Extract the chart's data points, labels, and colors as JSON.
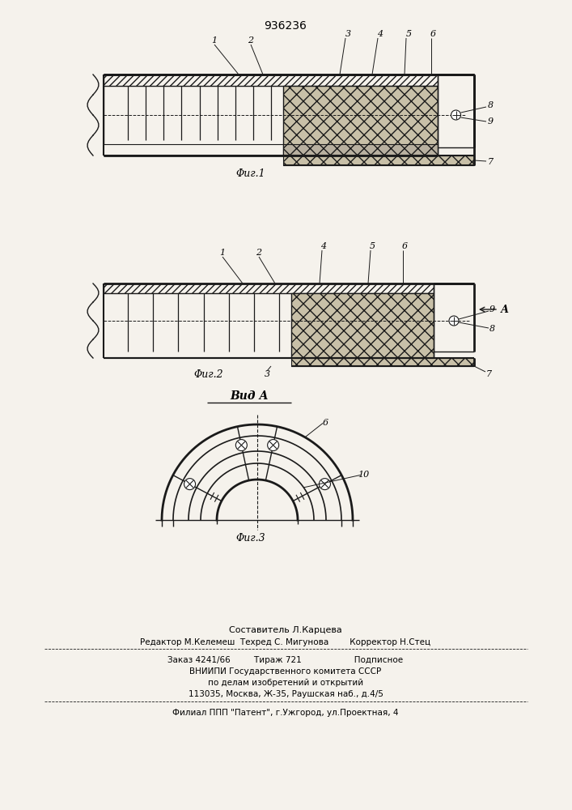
{
  "title": "936236",
  "fig1_label": "Φиг.1",
  "fig2_label": "Φиг.2",
  "fig3_label": "Φиг.3",
  "vid_label": "Вид А",
  "footer_lines": [
    "Составитель Л.Карцева",
    "Редактор М.Келемеш  Техред С. Мигунова        Корректор Н.Стец",
    "Заказ 4241/66         Тираж 721                    Подписное",
    "ВНИИПИ Государственного комитета СССР",
    "по делам изобретений и открытий",
    "113035, Москва, Ж-35, Раушская наб., д.4/5",
    "Филиал ППП \"Патент\", г.Ужгород, ул.Проектная, 4"
  ],
  "bg_color": "#f5f2ec",
  "line_color": "#1a1a1a"
}
